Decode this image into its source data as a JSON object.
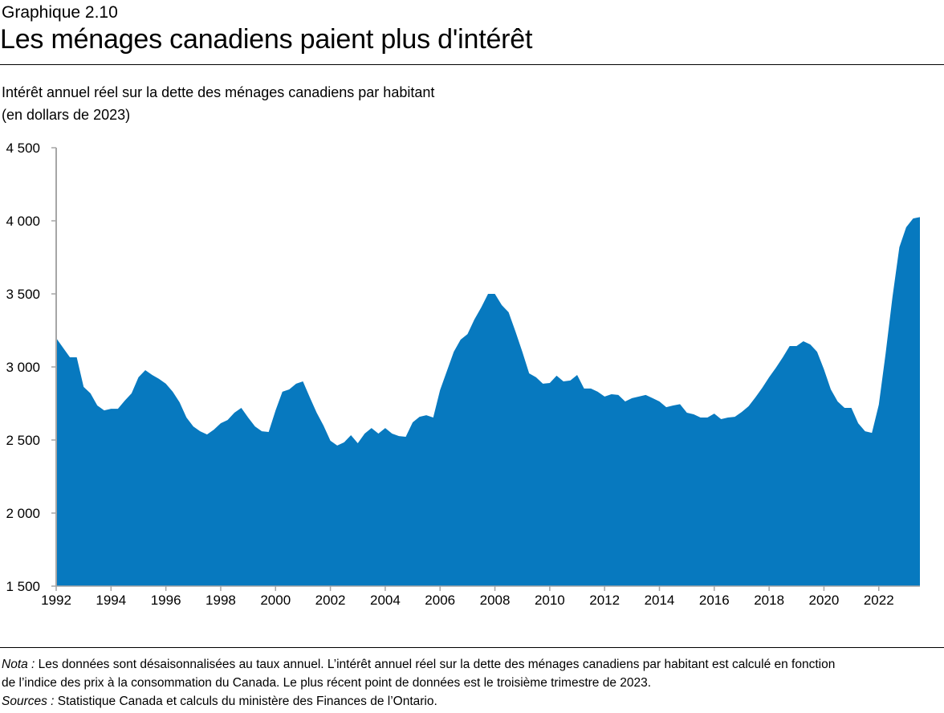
{
  "header": {
    "chart_label": "Graphique 2.10",
    "title": "Les ménages canadiens paient plus d'intérêt"
  },
  "footer": {
    "note_label": "Nota :",
    "note_text_1": " Les données sont désaisonnalisées au taux annuel. L’intérêt annuel réel sur la dette des ménages canadiens par habitant est calculé en fonction",
    "note_text_2": "de l’indice des prix à la consommation du Canada. Le plus récent point de données est le troisième trimestre de 2023.",
    "sources_label": "Sources :",
    "sources_text": " Statistique Canada et calculs du ministère des Finances de l’Ontario."
  },
  "chart_data": {
    "type": "area",
    "title": "Les ménages canadiens paient plus d'intérêt",
    "ylabel_line1": "Intérêt annuel réel sur la dette des ménages canadiens par habitant",
    "ylabel_line2": "(en dollars de 2023)",
    "xlabel": "",
    "frequency": "quarterly",
    "start": "1992 T1",
    "end": "2023 T3",
    "ylim": [
      1500,
      4500
    ],
    "xlim": [
      1992,
      2023.5
    ],
    "grid": false,
    "color": "#0779BF",
    "y_ticks": [
      "1 500",
      "2 000",
      "2 500",
      "3 000",
      "3 500",
      "4 000",
      "4 500"
    ],
    "y_tick_values": [
      1500,
      2000,
      2500,
      3000,
      3500,
      4000,
      4500
    ],
    "x_ticks": [
      "1992",
      "1994",
      "1996",
      "1998",
      "2000",
      "2002",
      "2004",
      "2006",
      "2008",
      "2010",
      "2012",
      "2014",
      "2016",
      "2018",
      "2020",
      "2022"
    ],
    "values": [
      3198,
      3132,
      3066,
      3066,
      2863,
      2819,
      2736,
      2703,
      2714,
      2714,
      2769,
      2819,
      2929,
      2978,
      2945,
      2918,
      2885,
      2830,
      2758,
      2654,
      2593,
      2560,
      2538,
      2571,
      2615,
      2637,
      2687,
      2720,
      2654,
      2593,
      2560,
      2555,
      2703,
      2830,
      2846,
      2885,
      2901,
      2791,
      2687,
      2599,
      2495,
      2462,
      2484,
      2533,
      2478,
      2544,
      2582,
      2544,
      2582,
      2544,
      2527,
      2522,
      2621,
      2659,
      2670,
      2654,
      2841,
      2973,
      3104,
      3187,
      3225,
      3324,
      3407,
      3500,
      3500,
      3423,
      3374,
      3242,
      3104,
      2956,
      2929,
      2885,
      2890,
      2940,
      2901,
      2907,
      2945,
      2852,
      2852,
      2830,
      2797,
      2813,
      2808,
      2764,
      2786,
      2797,
      2808,
      2786,
      2764,
      2725,
      2736,
      2745,
      2687,
      2676,
      2654,
      2654,
      2681,
      2643,
      2654,
      2659,
      2692,
      2731,
      2791,
      2857,
      2929,
      2995,
      3066,
      3143,
      3143,
      3176,
      3154,
      3104,
      2984,
      2846,
      2764,
      2720,
      2720,
      2615,
      2560,
      2549,
      2742,
      3093,
      3478,
      3819,
      3956,
      4016,
      4025
    ]
  }
}
